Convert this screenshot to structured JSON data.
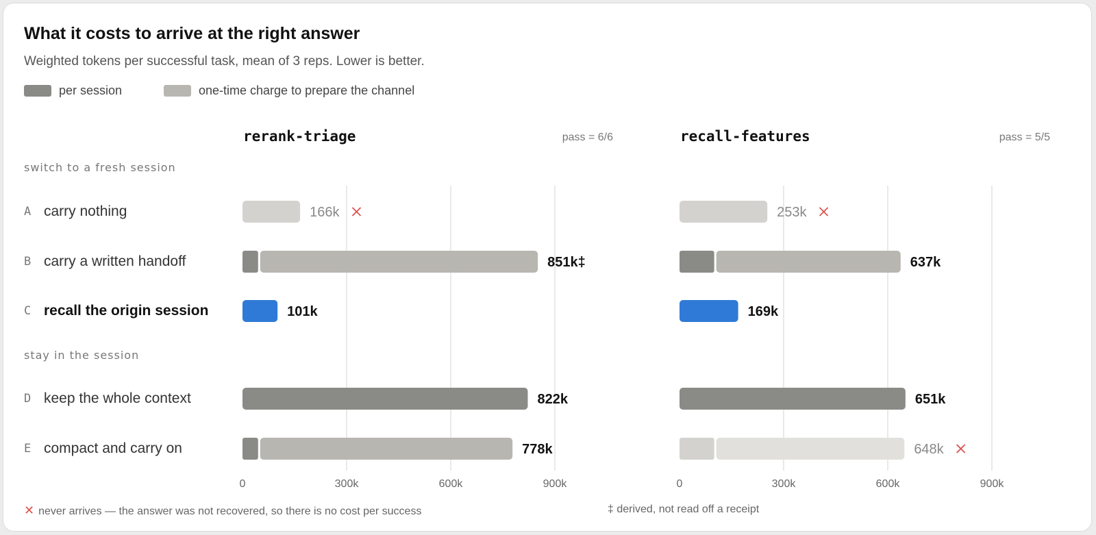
{
  "title": "What it costs to arrive at the right answer",
  "subtitle": "Weighted tokens per successful task, mean of 3 reps. Lower is better.",
  "legend": [
    {
      "label": "per session",
      "color": "#8a8a87"
    },
    {
      "label": "one-time charge to prepare the channel",
      "color": "#b8b6b0"
    }
  ],
  "colors": {
    "session": "#8a8a87",
    "prep": "#b8b6b0",
    "highlight": "#2f7ad6",
    "failed_session": "#d3d2ce",
    "failed_prep": "#e1e0dc",
    "grid": "#e2e2e0",
    "cross": "#d9534f"
  },
  "sections": [
    {
      "label": "switch to a fresh session"
    },
    {
      "label": "stay in the session"
    }
  ],
  "rows": [
    {
      "letter": "A",
      "label": "carry nothing",
      "bold": false
    },
    {
      "letter": "B",
      "label": "carry a written handoff",
      "bold": false
    },
    {
      "letter": "C",
      "label": "recall the origin session",
      "bold": true
    },
    {
      "letter": "D",
      "label": "keep the whole context",
      "bold": false
    },
    {
      "letter": "E",
      "label": "compact and carry on",
      "bold": false
    }
  ],
  "footnotes": {
    "cross_mark": "✕",
    "cross": "never arrives — the answer was not recovered, so there is no cost per success",
    "derived": "‡ derived, not read off a receipt"
  },
  "chart_data": [
    {
      "type": "bar",
      "title": "rerank-triage",
      "pass": "pass = 6/6",
      "xlim": [
        0,
        900000
      ],
      "xticks": [
        0,
        300000,
        600000,
        900000
      ],
      "xtick_labels": [
        "0",
        "300k",
        "600k",
        "900k"
      ],
      "bars": [
        {
          "row": "A",
          "session": 166000,
          "prep": 0,
          "label": "166k",
          "failed": true,
          "highlight": false
        },
        {
          "row": "B",
          "session": 45000,
          "prep": 806000,
          "label": "851k‡",
          "failed": false,
          "highlight": false
        },
        {
          "row": "C",
          "session": 101000,
          "prep": 0,
          "label": "101k",
          "failed": false,
          "highlight": true
        },
        {
          "row": "D",
          "session": 822000,
          "prep": 0,
          "label": "822k",
          "failed": false,
          "highlight": false
        },
        {
          "row": "E",
          "session": 45000,
          "prep": 733000,
          "label": "778k",
          "failed": false,
          "highlight": false
        }
      ]
    },
    {
      "type": "bar",
      "title": "recall-features",
      "pass": "pass = 5/5",
      "xlim": [
        0,
        900000
      ],
      "xticks": [
        0,
        300000,
        600000,
        900000
      ],
      "xtick_labels": [
        "0",
        "300k",
        "600k",
        "900k"
      ],
      "bars": [
        {
          "row": "A",
          "session": 253000,
          "prep": 0,
          "label": "253k",
          "failed": true,
          "highlight": false
        },
        {
          "row": "B",
          "session": 100000,
          "prep": 537000,
          "label": "637k",
          "failed": false,
          "highlight": false
        },
        {
          "row": "C",
          "session": 169000,
          "prep": 0,
          "label": "169k",
          "failed": false,
          "highlight": true
        },
        {
          "row": "D",
          "session": 651000,
          "prep": 0,
          "label": "651k",
          "failed": false,
          "highlight": false
        },
        {
          "row": "E",
          "session": 100000,
          "prep": 548000,
          "label": "648k",
          "failed": true,
          "highlight": false
        }
      ]
    }
  ]
}
